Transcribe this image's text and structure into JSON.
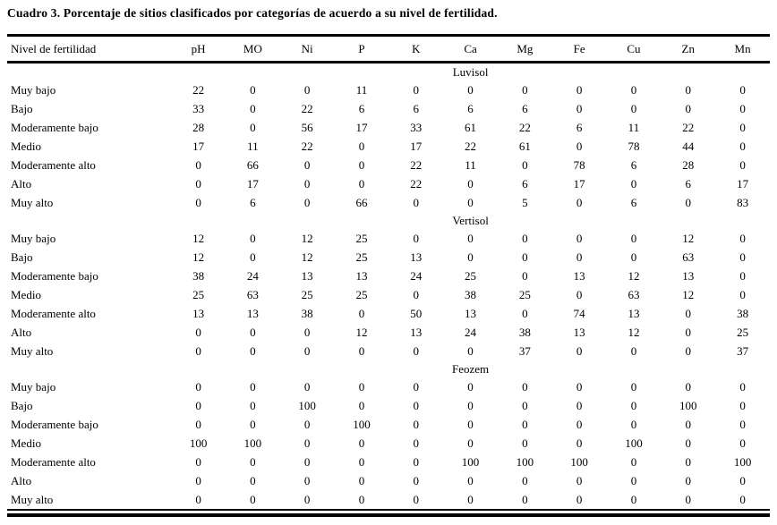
{
  "title": "Cuadro 3. Porcentaje de sitios clasificados por categorías de acuerdo a su nivel de fertilidad.",
  "table": {
    "row_header": "Nivel de fertilidad",
    "columns": [
      "pH",
      "MO",
      "Ni",
      "P",
      "K",
      "Ca",
      "Mg",
      "Fe",
      "Cu",
      "Zn",
      "Mn"
    ],
    "sections": [
      {
        "name": "Luvisol",
        "rows": [
          {
            "label": "Muy bajo",
            "values": [
              22,
              0,
              0,
              11,
              0,
              0,
              0,
              0,
              0,
              0,
              0
            ]
          },
          {
            "label": "Bajo",
            "values": [
              33,
              0,
              22,
              6,
              6,
              6,
              6,
              0,
              0,
              0,
              0
            ]
          },
          {
            "label": "Moderamente bajo",
            "values": [
              28,
              0,
              56,
              17,
              33,
              61,
              22,
              6,
              11,
              22,
              0
            ]
          },
          {
            "label": "Medio",
            "values": [
              17,
              11,
              22,
              0,
              17,
              22,
              61,
              0,
              78,
              44,
              0
            ]
          },
          {
            "label": "Moderamente alto",
            "values": [
              0,
              66,
              0,
              0,
              22,
              11,
              0,
              78,
              6,
              28,
              0
            ]
          },
          {
            "label": "Alto",
            "values": [
              0,
              17,
              0,
              0,
              22,
              0,
              6,
              17,
              0,
              6,
              17
            ]
          },
          {
            "label": "Muy alto",
            "values": [
              0,
              6,
              0,
              66,
              0,
              0,
              5,
              0,
              6,
              0,
              83
            ]
          }
        ]
      },
      {
        "name": "Vertisol",
        "rows": [
          {
            "label": "Muy bajo",
            "values": [
              12,
              0,
              12,
              25,
              0,
              0,
              0,
              0,
              0,
              12,
              0
            ]
          },
          {
            "label": "Bajo",
            "values": [
              12,
              0,
              12,
              25,
              13,
              0,
              0,
              0,
              0,
              63,
              0
            ]
          },
          {
            "label": "Moderamente bajo",
            "values": [
              38,
              24,
              13,
              13,
              24,
              25,
              0,
              13,
              12,
              13,
              0
            ]
          },
          {
            "label": "Medio",
            "values": [
              25,
              63,
              25,
              25,
              0,
              38,
              25,
              0,
              63,
              12,
              0
            ]
          },
          {
            "label": "Moderamente alto",
            "values": [
              13,
              13,
              38,
              0,
              50,
              13,
              0,
              74,
              13,
              0,
              38
            ]
          },
          {
            "label": "Alto",
            "values": [
              0,
              0,
              0,
              12,
              13,
              24,
              38,
              13,
              12,
              0,
              25
            ]
          },
          {
            "label": "Muy alto",
            "values": [
              0,
              0,
              0,
              0,
              0,
              0,
              37,
              0,
              0,
              0,
              37
            ]
          }
        ]
      },
      {
        "name": "Feozem",
        "rows": [
          {
            "label": "Muy bajo",
            "values": [
              0,
              0,
              0,
              0,
              0,
              0,
              0,
              0,
              0,
              0,
              0
            ]
          },
          {
            "label": "Bajo",
            "values": [
              0,
              0,
              100,
              0,
              0,
              0,
              0,
              0,
              0,
              100,
              0
            ]
          },
          {
            "label": "Moderamente bajo",
            "values": [
              0,
              0,
              0,
              100,
              0,
              0,
              0,
              0,
              0,
              0,
              0
            ]
          },
          {
            "label": "Medio",
            "values": [
              100,
              100,
              0,
              0,
              0,
              0,
              0,
              0,
              100,
              0,
              0
            ]
          },
          {
            "label": "Moderamente alto",
            "values": [
              0,
              0,
              0,
              0,
              0,
              100,
              100,
              100,
              0,
              0,
              100
            ]
          },
          {
            "label": "Alto",
            "values": [
              0,
              0,
              0,
              0,
              0,
              0,
              0,
              0,
              0,
              0,
              0
            ]
          },
          {
            "label": "Muy alto",
            "values": [
              0,
              0,
              0,
              0,
              0,
              0,
              0,
              0,
              0,
              0,
              0
            ]
          }
        ]
      }
    ]
  }
}
